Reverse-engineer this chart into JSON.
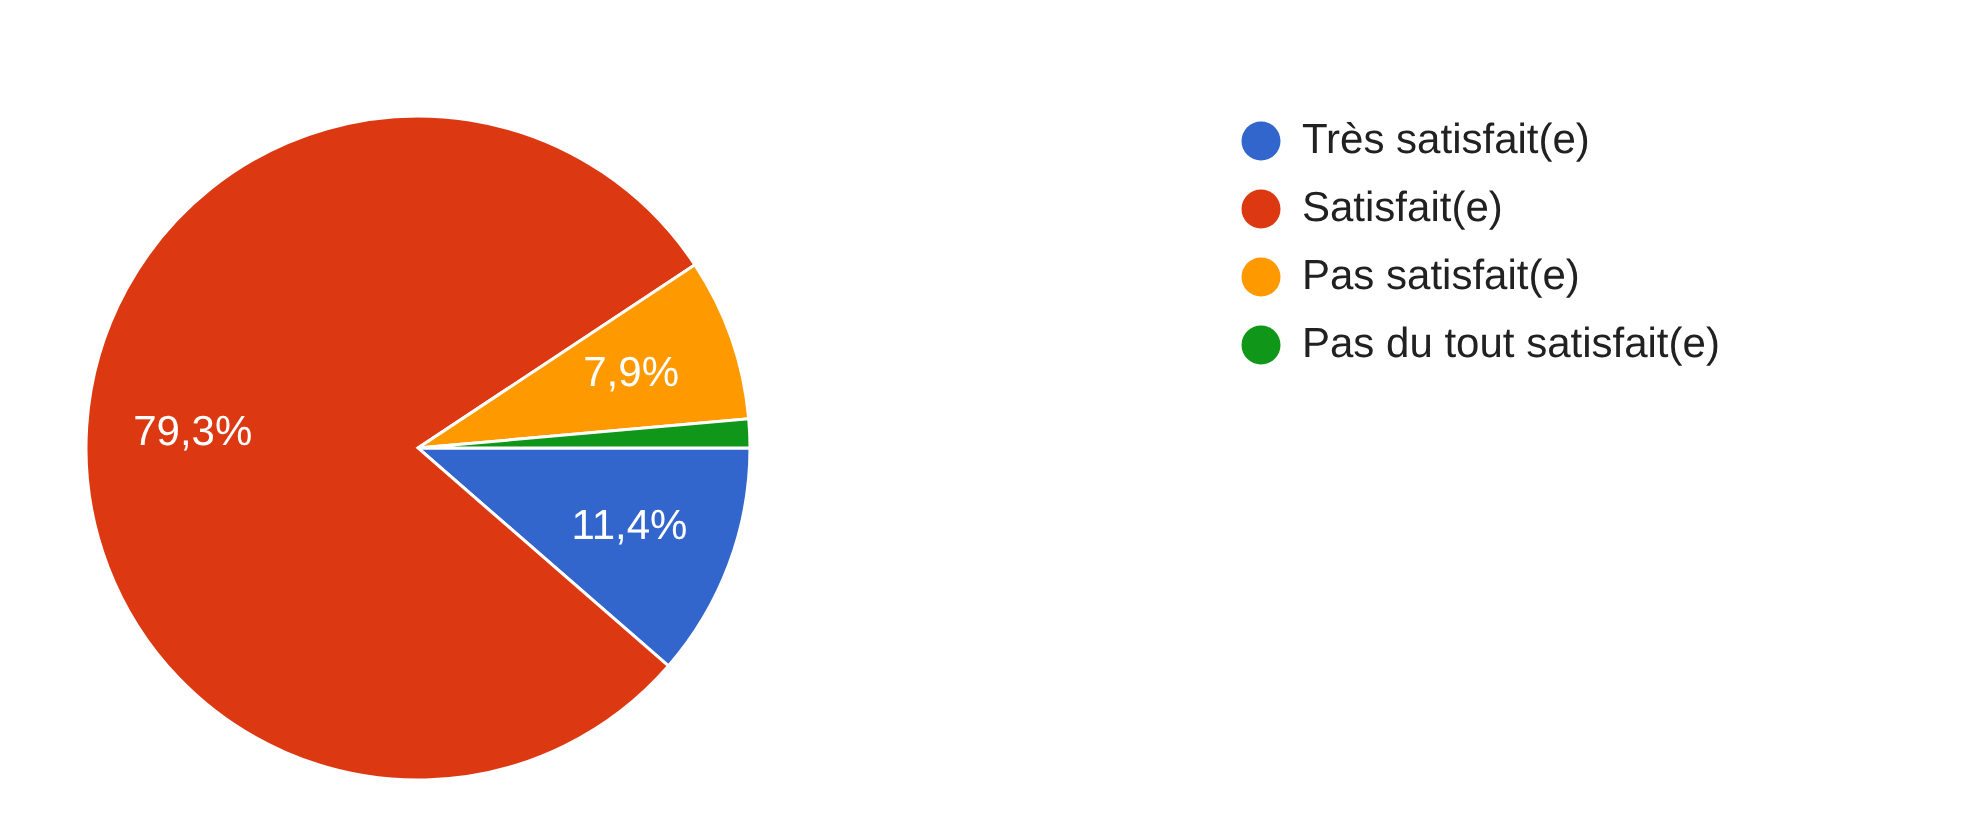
{
  "chart_data": {
    "type": "pie",
    "categories": [
      "Très satisfait(e)",
      "Satisfait(e)",
      "Pas satisfait(e)",
      "Pas du tout satisfait(e)"
    ],
    "values": [
      11.4,
      79.3,
      7.9,
      1.4
    ],
    "colors": [
      "#3366cc",
      "#dc3912",
      "#ff9900",
      "#109618"
    ],
    "value_labels": [
      "11,4%",
      "79,3%",
      "7,9%",
      null
    ],
    "legend": "right"
  }
}
